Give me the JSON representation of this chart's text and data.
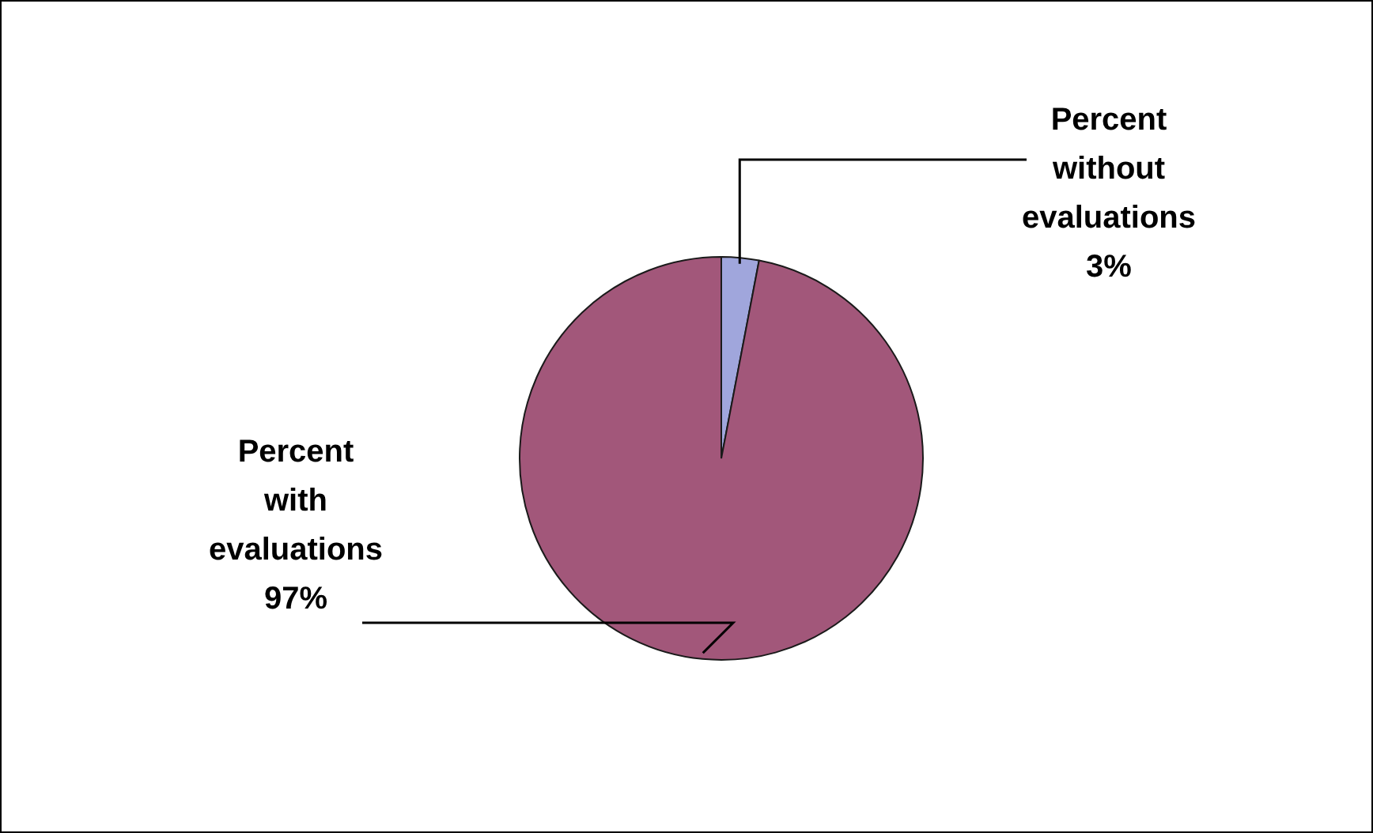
{
  "chart_data": {
    "type": "pie",
    "categories": [
      "Percent without evaluations",
      "Percent with evaluations"
    ],
    "values": [
      3,
      97
    ],
    "colors": [
      "#a0a6dc",
      "#a2577a"
    ],
    "value_labels": [
      "3%",
      "97%"
    ],
    "legend": false
  }
}
